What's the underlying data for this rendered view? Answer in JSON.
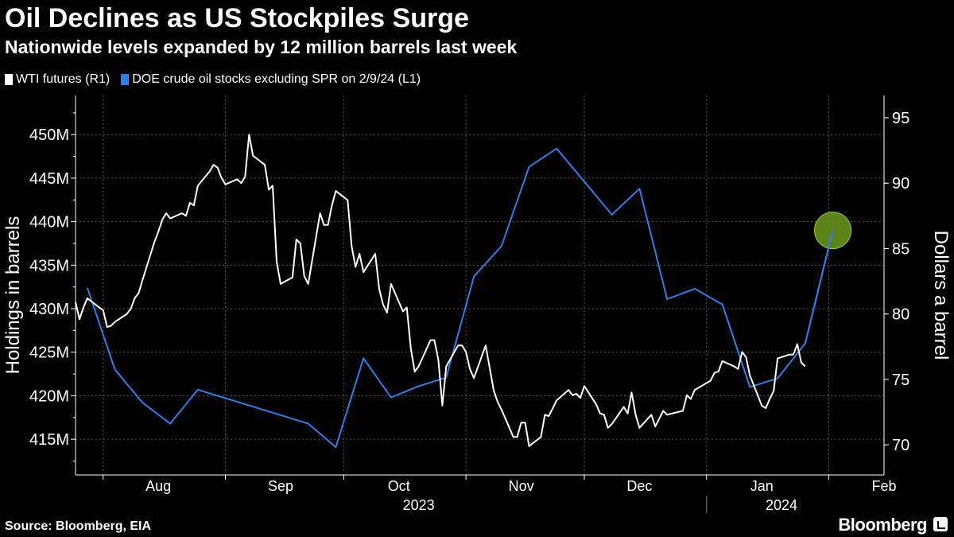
{
  "title": "Oil Declines as US Stockpiles Surge",
  "subtitle": "Nationwide levels expanded by 12 million barrels last week",
  "source": "Source: Bloomberg, EIA",
  "brand": "Bloomberg",
  "colors": {
    "background": "#000000",
    "wti": "#ffffff",
    "stocks": "#2f7ee6",
    "highlight": "#6b9a1f",
    "grid": "#555555"
  },
  "chart_data": {
    "type": "line",
    "legend": [
      {
        "name": "WTI futures (R1)",
        "color": "#ffffff"
      },
      {
        "name": "DOE crude oil stocks excluding SPR on 2/9/24 (L1)",
        "color": "#2f7ee6"
      }
    ],
    "legend_position": "top-left",
    "grid": true,
    "x_range": [
      "2023-07-25",
      "2024-02-15"
    ],
    "x_ticks": [
      {
        "date": "2023-08-15",
        "label": "Aug"
      },
      {
        "date": "2023-09-15",
        "label": "Sep"
      },
      {
        "date": "2023-10-15",
        "label": "Oct"
      },
      {
        "date": "2023-11-15",
        "label": "Nov"
      },
      {
        "date": "2023-12-15",
        "label": "Dec"
      },
      {
        "date": "2024-01-15",
        "label": "Jan"
      },
      {
        "date": "2024-02-15",
        "label": "Feb"
      }
    ],
    "x_month_boundaries": [
      "2023-08-01",
      "2023-09-01",
      "2023-10-01",
      "2023-11-01",
      "2023-12-01",
      "2024-01-01",
      "2024-02-01"
    ],
    "year_labels": [
      {
        "date": "2023-10-20",
        "label": "2023"
      },
      {
        "date": "2024-01-20",
        "label": "2024"
      }
    ],
    "year_boundary": "2024-01-01",
    "left_axis": {
      "label": "Holdings in barrels",
      "min": 410.9,
      "max": 454.5,
      "ticks": [
        415,
        420,
        425,
        430,
        435,
        440,
        445,
        450
      ],
      "tick_labels": [
        "415M",
        "420M",
        "425M",
        "430M",
        "435M",
        "440M",
        "445M",
        "450M"
      ]
    },
    "right_axis": {
      "label": "Dollars a barrel",
      "min": 67.7,
      "max": 96.7,
      "ticks": [
        70,
        75,
        80,
        85,
        90,
        95
      ],
      "tick_labels": [
        "70",
        "75",
        "80",
        "85",
        "90",
        "95"
      ]
    },
    "series": [
      {
        "name": "DOE crude oil stocks excluding SPR on 2/9/24 (L1)",
        "axis": "left",
        "color": "#2f7ee6",
        "points": [
          [
            "2023-07-28",
            432.4
          ],
          [
            "2023-08-04",
            423.0
          ],
          [
            "2023-08-11",
            419.2
          ],
          [
            "2023-08-18",
            416.8
          ],
          [
            "2023-08-25",
            420.7
          ],
          [
            "2023-09-22",
            416.8
          ],
          [
            "2023-09-29",
            414.1
          ],
          [
            "2023-10-06",
            424.3
          ],
          [
            "2023-10-13",
            419.8
          ],
          [
            "2023-10-20",
            421.1
          ],
          [
            "2023-10-27",
            422.1
          ],
          [
            "2023-11-03",
            433.7
          ],
          [
            "2023-11-10",
            437.2
          ],
          [
            "2023-11-17",
            446.3
          ],
          [
            "2023-11-24",
            448.4
          ],
          [
            "2023-12-01",
            444.6
          ],
          [
            "2023-12-08",
            440.8
          ],
          [
            "2023-12-15",
            443.8
          ],
          [
            "2023-12-22",
            431.1
          ],
          [
            "2023-12-29",
            432.3
          ],
          [
            "2024-01-05",
            430.5
          ],
          [
            "2024-01-12",
            421.0
          ],
          [
            "2024-01-19",
            422.0
          ],
          [
            "2024-01-26",
            426.0
          ],
          [
            "2024-02-02",
            439.0
          ]
        ]
      },
      {
        "name": "WTI futures (R1)",
        "axis": "right",
        "color": "#ffffff",
        "points": [
          [
            "2023-07-25",
            80.9
          ],
          [
            "2023-07-26",
            79.6
          ],
          [
            "2023-07-27",
            80.5
          ],
          [
            "2023-07-28",
            81.2
          ],
          [
            "2023-07-31",
            80.5
          ],
          [
            "2023-08-01",
            80.3
          ],
          [
            "2023-08-02",
            79.0
          ],
          [
            "2023-08-03",
            79.1
          ],
          [
            "2023-08-04",
            79.4
          ],
          [
            "2023-08-07",
            80.0
          ],
          [
            "2023-08-08",
            80.4
          ],
          [
            "2023-08-09",
            81.2
          ],
          [
            "2023-08-10",
            81.6
          ],
          [
            "2023-08-11",
            82.6
          ],
          [
            "2023-08-14",
            85.5
          ],
          [
            "2023-08-15",
            86.3
          ],
          [
            "2023-08-16",
            87.2
          ],
          [
            "2023-08-17",
            87.7
          ],
          [
            "2023-08-18",
            87.3
          ],
          [
            "2023-08-21",
            87.7
          ],
          [
            "2023-08-22",
            87.5
          ],
          [
            "2023-08-23",
            88.5
          ],
          [
            "2023-08-24",
            88.3
          ],
          [
            "2023-08-25",
            89.8
          ],
          [
            "2023-08-28",
            90.9
          ],
          [
            "2023-08-29",
            91.4
          ],
          [
            "2023-08-30",
            91.2
          ],
          [
            "2023-08-31",
            90.4
          ],
          [
            "2023-09-01",
            89.9
          ],
          [
            "2023-09-04",
            90.3
          ],
          [
            "2023-09-05",
            90.0
          ],
          [
            "2023-09-06",
            90.5
          ],
          [
            "2023-09-07",
            93.7
          ],
          [
            "2023-09-08",
            92.1
          ],
          [
            "2023-09-11",
            91.4
          ],
          [
            "2023-09-12",
            89.5
          ],
          [
            "2023-09-13",
            89.8
          ],
          [
            "2023-09-14",
            84.0
          ],
          [
            "2023-09-15",
            82.3
          ],
          [
            "2023-09-18",
            82.8
          ],
          [
            "2023-09-19",
            85.7
          ],
          [
            "2023-09-20",
            85.4
          ],
          [
            "2023-09-21",
            82.9
          ],
          [
            "2023-09-22",
            82.3
          ],
          [
            "2023-09-25",
            87.7
          ],
          [
            "2023-09-26",
            86.8
          ],
          [
            "2023-09-27",
            86.8
          ],
          [
            "2023-09-28",
            88.3
          ],
          [
            "2023-09-29",
            89.4
          ],
          [
            "2023-10-02",
            88.7
          ],
          [
            "2023-10-03",
            85.2
          ],
          [
            "2023-10-04",
            83.6
          ],
          [
            "2023-10-05",
            84.6
          ],
          [
            "2023-10-06",
            83.2
          ],
          [
            "2023-10-09",
            84.6
          ],
          [
            "2023-10-10",
            81.9
          ],
          [
            "2023-10-11",
            80.7
          ],
          [
            "2023-10-12",
            80.1
          ],
          [
            "2023-10-13",
            82.3
          ],
          [
            "2023-10-16",
            80.2
          ],
          [
            "2023-10-17",
            80.5
          ],
          [
            "2023-10-18",
            77.4
          ],
          [
            "2023-10-19",
            75.6
          ],
          [
            "2023-10-20",
            76.0
          ],
          [
            "2023-10-23",
            78.0
          ],
          [
            "2023-10-24",
            78.0
          ],
          [
            "2023-10-25",
            76.5
          ],
          [
            "2023-10-26",
            73.0
          ],
          [
            "2023-10-27",
            76.0
          ],
          [
            "2023-10-30",
            77.6
          ],
          [
            "2023-10-31",
            77.6
          ],
          [
            "2023-11-01",
            77.1
          ],
          [
            "2023-11-02",
            75.8
          ],
          [
            "2023-11-03",
            75.1
          ],
          [
            "2023-11-06",
            77.6
          ],
          [
            "2023-11-07",
            75.9
          ],
          [
            "2023-11-08",
            74.2
          ],
          [
            "2023-11-09",
            73.3
          ],
          [
            "2023-11-10",
            72.7
          ],
          [
            "2023-11-13",
            70.6
          ],
          [
            "2023-11-14",
            70.6
          ],
          [
            "2023-11-15",
            71.7
          ],
          [
            "2023-11-16",
            71.7
          ],
          [
            "2023-11-17",
            69.9
          ],
          [
            "2023-11-20",
            70.6
          ],
          [
            "2023-11-21",
            72.3
          ],
          [
            "2023-11-22",
            72.2
          ],
          [
            "2023-11-23",
            72.8
          ],
          [
            "2023-11-24",
            73.4
          ],
          [
            "2023-11-27",
            74.2
          ],
          [
            "2023-11-28",
            73.8
          ],
          [
            "2023-11-29",
            73.9
          ],
          [
            "2023-11-30",
            73.6
          ],
          [
            "2023-12-01",
            74.5
          ],
          [
            "2023-12-04",
            73.1
          ],
          [
            "2023-12-05",
            72.4
          ],
          [
            "2023-12-06",
            72.3
          ],
          [
            "2023-12-07",
            71.3
          ],
          [
            "2023-12-08",
            71.6
          ],
          [
            "2023-12-11",
            72.9
          ],
          [
            "2023-12-12",
            72.4
          ],
          [
            "2023-12-13",
            74.0
          ],
          [
            "2023-12-14",
            72.3
          ],
          [
            "2023-12-15",
            71.3
          ],
          [
            "2023-12-18",
            72.3
          ],
          [
            "2023-12-19",
            71.4
          ],
          [
            "2023-12-20",
            72.0
          ],
          [
            "2023-12-21",
            72.6
          ],
          [
            "2023-12-22",
            72.3
          ],
          [
            "2023-12-26",
            72.6
          ],
          [
            "2023-12-27",
            73.8
          ],
          [
            "2023-12-28",
            73.5
          ],
          [
            "2023-12-29",
            74.2
          ],
          [
            "2024-01-02",
            74.9
          ],
          [
            "2024-01-03",
            75.5
          ],
          [
            "2024-01-04",
            75.6
          ],
          [
            "2024-01-05",
            76.4
          ],
          [
            "2024-01-08",
            76.0
          ],
          [
            "2024-01-09",
            75.8
          ],
          [
            "2024-01-10",
            77.1
          ],
          [
            "2024-01-11",
            76.7
          ],
          [
            "2024-01-12",
            75.3
          ],
          [
            "2024-01-15",
            73.0
          ],
          [
            "2024-01-16",
            72.8
          ],
          [
            "2024-01-17",
            73.5
          ],
          [
            "2024-01-18",
            74.1
          ],
          [
            "2024-01-19",
            76.6
          ],
          [
            "2024-01-22",
            76.9
          ],
          [
            "2024-01-23",
            76.9
          ],
          [
            "2024-01-24",
            77.7
          ],
          [
            "2024-01-25",
            76.3
          ],
          [
            "2024-01-26",
            76.0
          ]
        ]
      }
    ],
    "annotations": [
      {
        "type": "circle",
        "series": "DOE crude oil stocks excluding SPR on 2/9/24 (L1)",
        "date": "2024-02-02",
        "value": 439.0
      }
    ]
  }
}
